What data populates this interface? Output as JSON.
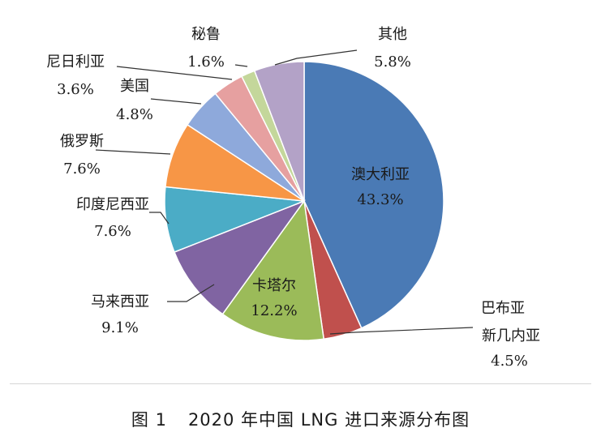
{
  "figure": {
    "caption_number": "图 1",
    "caption_text": "2020 年中国 LNG 进口来源分布图"
  },
  "chart_data": {
    "type": "pie",
    "start_angle_deg": 0,
    "direction": "clockwise",
    "slices": [
      {
        "name": "澳大利亚",
        "value": 43.3,
        "label": "43.3%",
        "color": "#4a7ab5",
        "label_position": "inside"
      },
      {
        "name": "巴布亚新几内亚",
        "name_lines": [
          "巴布亚",
          "新几内亚"
        ],
        "value": 4.5,
        "label": "4.5%",
        "color": "#c0504d",
        "label_position": "outside"
      },
      {
        "name": "卡塔尔",
        "value": 12.2,
        "label": "12.2%",
        "color": "#9bbb59",
        "label_position": "inside"
      },
      {
        "name": "马来西亚",
        "value": 9.1,
        "label": "9.1%",
        "color": "#8064a2",
        "label_position": "outside"
      },
      {
        "name": "印度尼西亚",
        "value": 7.6,
        "label": "7.6%",
        "color": "#4bacc6",
        "label_position": "outside"
      },
      {
        "name": "俄罗斯",
        "value": 7.6,
        "label": "7.6%",
        "color": "#f79646",
        "label_position": "outside"
      },
      {
        "name": "美国",
        "value": 4.8,
        "label": "4.8%",
        "color": "#8ea9db",
        "label_position": "outside"
      },
      {
        "name": "尼日利亚",
        "value": 3.6,
        "label": "3.6%",
        "color": "#e6a0a0",
        "label_position": "outside"
      },
      {
        "name": "秘鲁",
        "value": 1.6,
        "label": "1.6%",
        "color": "#c4d79b",
        "label_position": "outside"
      },
      {
        "name": "其他",
        "value": 5.8,
        "label": "5.8%",
        "color": "#b3a2c7",
        "label_position": "outside"
      }
    ],
    "legend": "none"
  }
}
